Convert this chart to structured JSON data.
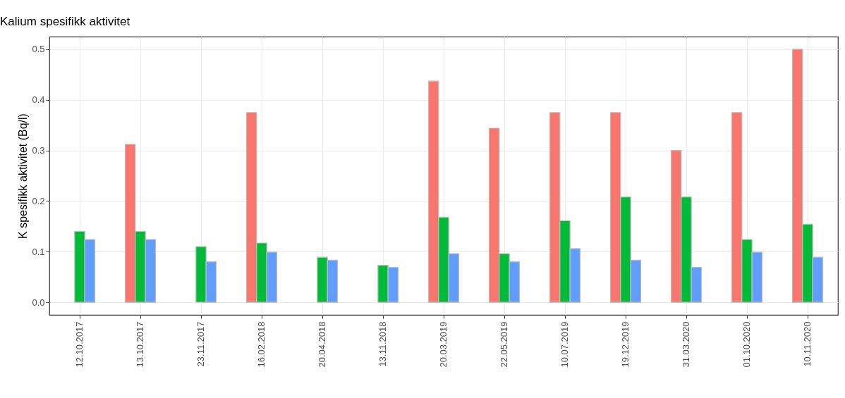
{
  "chart_data": {
    "type": "bar",
    "title": "Kalium spesifikk aktivitet",
    "ylabel": "K spesifikk aktivitet (Bq/l)",
    "categories": [
      "12.10.2017",
      "13.10.2017",
      "23.11.2017",
      "16.02.2018",
      "20.04.2018",
      "13.11.2018",
      "20.03.2019",
      "22.05.2019",
      "10.07.2019",
      "19.12.2019",
      "31.03.2020",
      "01.10.2020",
      "10.11.2020"
    ],
    "series": [
      {
        "color": "#f8766d",
        "values": [
          null,
          0.312,
          null,
          0.375,
          null,
          null,
          0.437,
          0.344,
          0.375,
          0.375,
          0.3,
          0.375,
          0.5
        ]
      },
      {
        "color": "#00ba38",
        "values": [
          0.14,
          0.14,
          0.11,
          0.117,
          0.089,
          0.073,
          0.168,
          0.096,
          0.161,
          0.208,
          0.208,
          0.124,
          0.154
        ]
      },
      {
        "color": "#619cff",
        "values": [
          0.124,
          0.124,
          0.08,
          0.099,
          0.083,
          0.069,
          0.096,
          0.08,
          0.106,
          0.083,
          0.069,
          0.099,
          0.089
        ]
      }
    ],
    "ylim": [
      -0.025,
      0.525
    ],
    "yticks": [
      {
        "value": 0,
        "label": "0.0"
      },
      {
        "value": 0.1,
        "label": "0.1"
      },
      {
        "value": 0.2,
        "label": "0.2"
      },
      {
        "value": 0.3,
        "label": "0.3"
      },
      {
        "value": 0.4,
        "label": "0.4"
      },
      {
        "value": 0.5,
        "label": "0.5"
      }
    ],
    "grid": true,
    "legend": false
  }
}
